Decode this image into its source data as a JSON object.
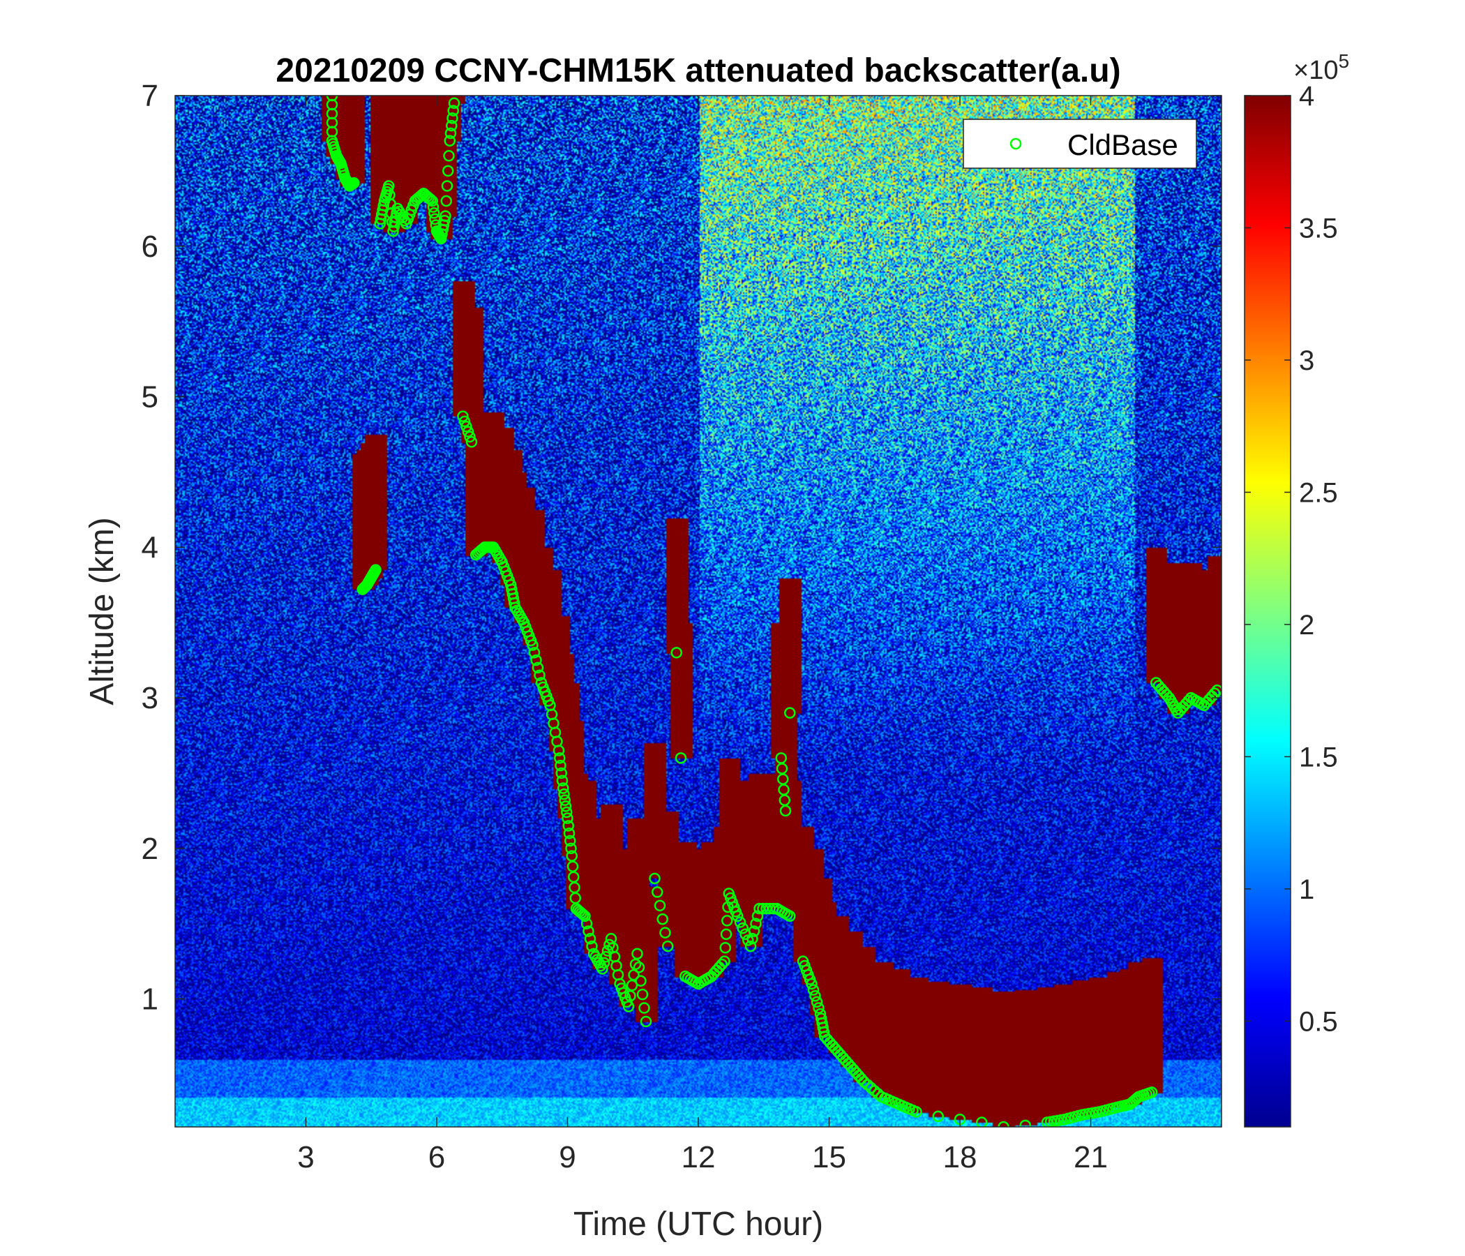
{
  "chart_data": {
    "type": "heatmap",
    "title": "20210209 CCNY-CHM15K attenuated backscatter(a.u)",
    "xlabel": "Time (UTC hour)",
    "ylabel": "Altitude (km)",
    "xlim": [
      0,
      24
    ],
    "ylim": [
      0.15,
      7
    ],
    "x_ticks": [
      3,
      6,
      9,
      12,
      15,
      18,
      21
    ],
    "x_tick_labels": [
      "3",
      "6",
      "9",
      "12",
      "15",
      "18",
      "21"
    ],
    "y_ticks": [
      1,
      2,
      3,
      4,
      5,
      6,
      7
    ],
    "y_tick_labels": [
      "1",
      "2",
      "3",
      "4",
      "5",
      "6",
      "7"
    ],
    "colorbar": {
      "colormap": "jet",
      "clim": [
        0.1,
        4
      ],
      "ticks": [
        0.5,
        1,
        1.5,
        2,
        2.5,
        3,
        3.5,
        4
      ],
      "tick_labels": [
        "0.5",
        "1",
        "1.5",
        "2",
        "2.5",
        "3",
        "3.5",
        "4"
      ],
      "exponent_prefix": "×10",
      "exponent": "5"
    },
    "legend": {
      "location": "top-right",
      "entries": [
        "CldBase"
      ]
    },
    "series": [
      {
        "name": "CldBase",
        "marker": "circle",
        "color": "#00ff00",
        "points": [
          [
            3.6,
            7.0
          ],
          [
            3.6,
            6.7
          ],
          [
            3.7,
            6.6
          ],
          [
            3.8,
            6.55
          ],
          [
            3.9,
            6.45
          ],
          [
            4.0,
            6.4
          ],
          [
            4.1,
            6.42
          ],
          [
            4.3,
            3.72
          ],
          [
            4.4,
            3.75
          ],
          [
            4.5,
            3.8
          ],
          [
            4.6,
            3.85
          ],
          [
            4.7,
            6.15
          ],
          [
            4.8,
            6.3
          ],
          [
            4.9,
            6.4
          ],
          [
            5.0,
            6.1
          ],
          [
            5.1,
            6.25
          ],
          [
            5.3,
            6.15
          ],
          [
            5.5,
            6.3
          ],
          [
            5.7,
            6.35
          ],
          [
            5.9,
            6.3
          ],
          [
            6.0,
            6.1
          ],
          [
            6.1,
            6.05
          ],
          [
            6.2,
            6.2
          ],
          [
            6.3,
            6.7
          ],
          [
            6.4,
            6.95
          ],
          [
            6.6,
            4.87
          ],
          [
            6.8,
            4.7
          ],
          [
            6.9,
            3.95
          ],
          [
            7.1,
            4.0
          ],
          [
            7.3,
            4.0
          ],
          [
            7.5,
            3.9
          ],
          [
            7.7,
            3.75
          ],
          [
            7.8,
            3.6
          ],
          [
            8.0,
            3.5
          ],
          [
            8.2,
            3.35
          ],
          [
            8.4,
            3.1
          ],
          [
            8.6,
            2.95
          ],
          [
            8.8,
            2.65
          ],
          [
            8.9,
            2.4
          ],
          [
            9.0,
            2.2
          ],
          [
            9.1,
            1.95
          ],
          [
            9.2,
            1.6
          ],
          [
            9.4,
            1.55
          ],
          [
            9.6,
            1.3
          ],
          [
            9.8,
            1.2
          ],
          [
            10.0,
            1.4
          ],
          [
            10.2,
            1.1
          ],
          [
            10.4,
            0.95
          ],
          [
            10.6,
            1.3
          ],
          [
            10.8,
            0.85
          ],
          [
            11.0,
            1.8
          ],
          [
            11.3,
            1.35
          ],
          [
            11.5,
            3.3
          ],
          [
            11.6,
            2.6
          ],
          [
            11.7,
            1.15
          ],
          [
            12.0,
            1.1
          ],
          [
            12.3,
            1.15
          ],
          [
            12.6,
            1.25
          ],
          [
            12.7,
            1.7
          ],
          [
            12.9,
            1.55
          ],
          [
            13.2,
            1.35
          ],
          [
            13.4,
            1.6
          ],
          [
            13.8,
            1.6
          ],
          [
            14.1,
            1.55
          ],
          [
            13.9,
            2.6
          ],
          [
            14.0,
            2.25
          ],
          [
            14.1,
            2.9
          ],
          [
            14.4,
            1.25
          ],
          [
            14.6,
            1.1
          ],
          [
            14.8,
            0.9
          ],
          [
            14.9,
            0.75
          ],
          [
            15.2,
            0.65
          ],
          [
            15.5,
            0.55
          ],
          [
            15.8,
            0.45
          ],
          [
            16.2,
            0.35
          ],
          [
            16.6,
            0.3
          ],
          [
            17.0,
            0.25
          ],
          [
            17.5,
            0.22
          ],
          [
            18.0,
            0.2
          ],
          [
            18.5,
            0.18
          ],
          [
            19.0,
            0.15
          ],
          [
            19.5,
            0.16
          ],
          [
            20.0,
            0.18
          ],
          [
            20.4,
            0.2
          ],
          [
            20.8,
            0.23
          ],
          [
            21.2,
            0.25
          ],
          [
            21.6,
            0.28
          ],
          [
            21.9,
            0.3
          ],
          [
            22.1,
            0.35
          ],
          [
            22.4,
            0.38
          ],
          [
            22.5,
            3.1
          ],
          [
            22.8,
            3.0
          ],
          [
            23.0,
            2.9
          ],
          [
            23.3,
            3.0
          ],
          [
            23.6,
            2.95
          ],
          [
            23.9,
            3.05
          ]
        ]
      }
    ]
  }
}
